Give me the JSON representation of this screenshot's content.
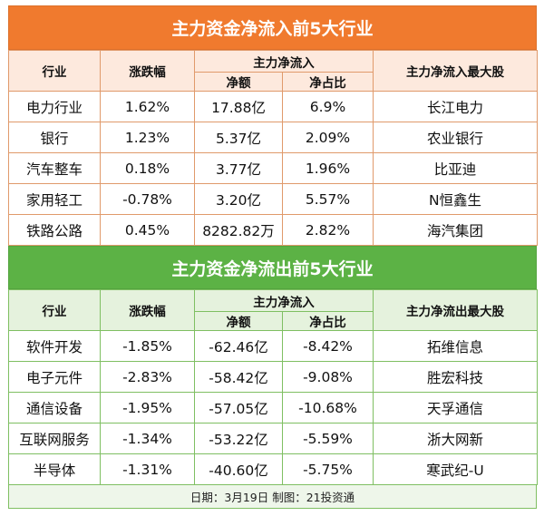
{
  "inflow": {
    "title": "主力资金净流入前5大行业",
    "headers": {
      "industry": "行业",
      "change": "涨跌幅",
      "net_group": "主力净流入",
      "net_amount": "净额",
      "net_ratio": "净占比",
      "top_stock": "主力净流入最大股"
    },
    "rows": [
      {
        "industry": "电力行业",
        "change": "1.62%",
        "amount": "17.88亿",
        "ratio": "6.9%",
        "stock": "长江电力"
      },
      {
        "industry": "银行",
        "change": "1.23%",
        "amount": "5.37亿",
        "ratio": "2.09%",
        "stock": "农业银行"
      },
      {
        "industry": "汽车整车",
        "change": "0.18%",
        "amount": "3.77亿",
        "ratio": "1.96%",
        "stock": "比亚迪"
      },
      {
        "industry": "家用轻工",
        "change": "-0.78%",
        "amount": "3.20亿",
        "ratio": "5.57%",
        "stock": "N恒鑫生"
      },
      {
        "industry": "铁路公路",
        "change": "0.45%",
        "amount": "8282.82万",
        "ratio": "2.82%",
        "stock": "海汽集团"
      }
    ]
  },
  "outflow": {
    "title": "主力资金净流出前5大行业",
    "headers": {
      "industry": "行业",
      "change": "涨跌幅",
      "net_group": "主力净流入",
      "net_amount": "净额",
      "net_ratio": "净占比",
      "top_stock": "主力净流出最大股"
    },
    "rows": [
      {
        "industry": "软件开发",
        "change": "-1.85%",
        "amount": "-62.46亿",
        "ratio": "-8.42%",
        "stock": "拓维信息"
      },
      {
        "industry": "电子元件",
        "change": "-2.83%",
        "amount": "-58.42亿",
        "ratio": "-9.08%",
        "stock": "胜宏科技"
      },
      {
        "industry": "通信设备",
        "change": "-1.95%",
        "amount": "-57.05亿",
        "ratio": "-10.68%",
        "stock": "天孚通信"
      },
      {
        "industry": "互联网服务",
        "change": "-1.34%",
        "amount": "-53.22亿",
        "ratio": "-5.59%",
        "stock": "浙大网新"
      },
      {
        "industry": "半导体",
        "change": "-1.31%",
        "amount": "-40.60亿",
        "ratio": "-5.75%",
        "stock": "寒武纪-U"
      }
    ]
  },
  "footer": "日期：3月19日 制图：21投资通",
  "colors": {
    "inflow_banner": "#f07a2e",
    "inflow_header": "#fde9dd",
    "outflow_banner": "#5cb245",
    "outflow_header": "#e5f2dd"
  }
}
